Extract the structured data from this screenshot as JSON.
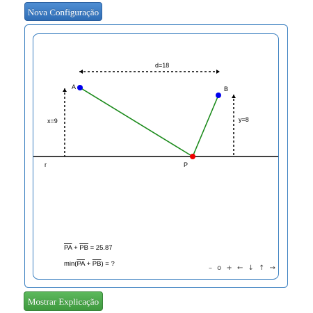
{
  "buttons": {
    "new_config": "Nova Configuração",
    "show_explanation": "Mostrar Explicação"
  },
  "labels": {
    "point_a": "A",
    "point_b": "B",
    "point_p": "P",
    "line_r": "r",
    "distance": "d=18",
    "height_a": "x=9",
    "height_b": "y=8"
  },
  "formula": {
    "pa": "PA",
    "plus": " + ",
    "pb": "PB",
    "sum_value": " = 25.87",
    "min_prefix": "min(",
    "min_suffix": ") = ?"
  },
  "nav": {
    "zoom_out": "–",
    "reset": "o",
    "zoom_in": "+",
    "left": "←",
    "down": "↓",
    "up": "↑",
    "right": "→"
  },
  "colors": {
    "segment": "#1a8a1a",
    "point_ab": "#0000ee",
    "point_p": "#ee0000",
    "button_blue": "#3577c4",
    "button_green": "#4cae4c",
    "frame": "#3a7fc0"
  }
}
